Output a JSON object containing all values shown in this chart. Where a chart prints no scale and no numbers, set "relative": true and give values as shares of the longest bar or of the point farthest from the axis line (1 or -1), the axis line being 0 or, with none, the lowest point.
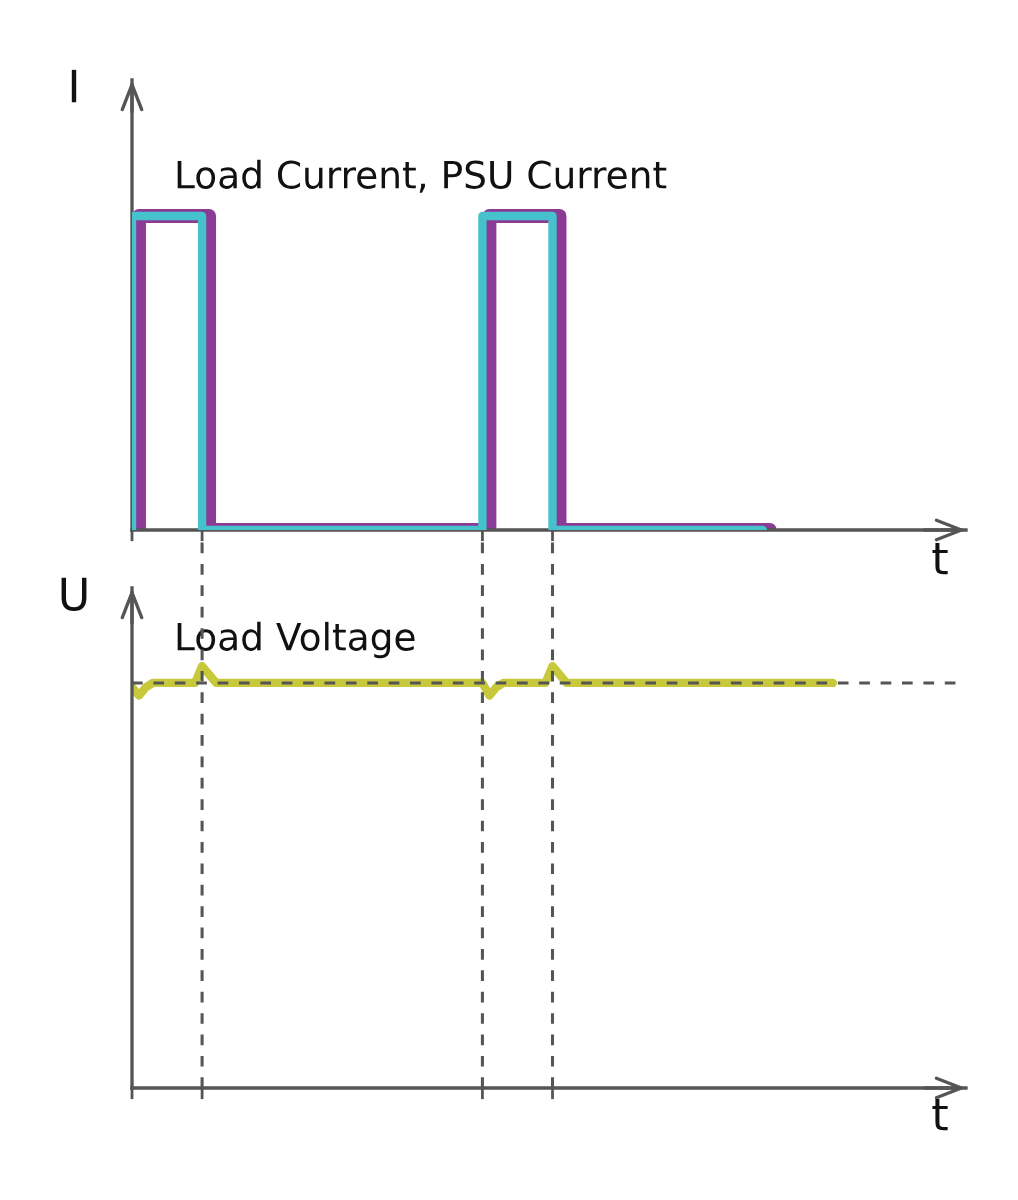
{
  "chart_data": [
    {
      "type": "step",
      "ylabel": "I",
      "xlabel": "t",
      "annotations": [
        "Load Current, PSU Current"
      ],
      "relative": true,
      "categories": [
        null,
        null,
        null,
        null,
        null,
        null,
        null,
        null,
        null,
        null,
        null,
        null,
        null,
        null,
        null,
        null,
        null,
        null,
        null,
        null,
        null,
        null,
        null,
        null,
        null,
        null,
        null,
        null,
        null,
        null,
        null,
        null,
        null,
        null,
        null,
        null,
        null,
        null,
        null,
        null,
        null,
        null,
        null,
        null,
        null,
        null,
        null,
        null,
        null,
        null,
        null,
        null,
        null,
        null,
        null,
        null,
        null,
        null,
        null,
        null,
        null,
        null,
        null,
        null,
        null,
        null,
        null,
        null,
        null,
        null,
        null,
        null,
        null,
        null,
        null,
        null,
        null,
        null,
        null,
        null,
        null,
        null,
        null,
        null,
        null,
        null,
        null,
        null,
        null,
        null,
        null,
        null,
        null,
        null,
        null,
        null,
        null,
        null,
        null,
        null,
        null
      ],
      "series": [
        {
          "color": "#8b3a96",
          "values": [
            0,
            0,
            1,
            1,
            1,
            1,
            1,
            1,
            1,
            1,
            1,
            1,
            0,
            0,
            0,
            0,
            0,
            0,
            0,
            0,
            0,
            0,
            0,
            0,
            0,
            0,
            0,
            0,
            0,
            0,
            0,
            0,
            0,
            0,
            0,
            0,
            0,
            0,
            0,
            0,
            0,
            0,
            0,
            0,
            0,
            0,
            0,
            0,
            0,
            0,
            0,
            0,
            1,
            1,
            1,
            1,
            1,
            1,
            1,
            1,
            1,
            1,
            0,
            0,
            0,
            0,
            0,
            0,
            0,
            0,
            0,
            0,
            0,
            0,
            0,
            0,
            0,
            0,
            0,
            0,
            0,
            0,
            0,
            0,
            0,
            0,
            0,
            0,
            0,
            0,
            0,
            0,
            null,
            null,
            null,
            null,
            null,
            null,
            null,
            null,
            null
          ]
        },
        {
          "color": "#45c2cc",
          "values": [
            0,
            1,
            1,
            1,
            1,
            1,
            1,
            1,
            1,
            1,
            1,
            0,
            0,
            0,
            0,
            0,
            0,
            0,
            0,
            0,
            0,
            0,
            0,
            0,
            0,
            0,
            0,
            0,
            0,
            0,
            0,
            0,
            0,
            0,
            0,
            0,
            0,
            0,
            0,
            0,
            0,
            0,
            0,
            0,
            0,
            0,
            0,
            0,
            0,
            0,
            0,
            1,
            1,
            1,
            1,
            1,
            1,
            1,
            1,
            1,
            1,
            0,
            0,
            0,
            0,
            0,
            0,
            0,
            0,
            0,
            0,
            0,
            0,
            0,
            0,
            0,
            0,
            0,
            0,
            0,
            0,
            0,
            0,
            0,
            0,
            0,
            0,
            0,
            0,
            0,
            0,
            null,
            null,
            null,
            null,
            null,
            null,
            null,
            null,
            null,
            null
          ]
        }
      ]
    },
    {
      "type": "line",
      "ylabel": "U",
      "xlabel": "t",
      "annotations": [
        "Load Voltage"
      ],
      "relative": true,
      "grid": "x",
      "categories": [
        null,
        null,
        null,
        null,
        null,
        null,
        null,
        null,
        null,
        null,
        null,
        null,
        null,
        null,
        null,
        null,
        null,
        null,
        null,
        null,
        null,
        null,
        null,
        null,
        null,
        null,
        null,
        null,
        null,
        null,
        null,
        null,
        null,
        null,
        null,
        null,
        null,
        null,
        null,
        null,
        null,
        null,
        null,
        null,
        null,
        null,
        null,
        null,
        null,
        null,
        null,
        null,
        null,
        null,
        null,
        null,
        null,
        null,
        null,
        null,
        null,
        null,
        null,
        null,
        null,
        null,
        null,
        null,
        null,
        null,
        null,
        null,
        null,
        null,
        null,
        null,
        null,
        null,
        null,
        null,
        null,
        null,
        null,
        null,
        null,
        null,
        null,
        null,
        null,
        null,
        null,
        null,
        null,
        null,
        null,
        null,
        null,
        null,
        null,
        null,
        null
      ],
      "series": [
        {
          "color": "#c8c83c",
          "values": [
            0.95,
            0.93,
            0.95,
            0.96,
            0.96,
            0.96,
            0.96,
            0.96,
            0.96,
            0.96,
            1,
            0.98,
            0.96,
            0.96,
            0.96,
            0.96,
            0.96,
            0.96,
            0.96,
            0.96,
            0.96,
            0.96,
            0.96,
            0.96,
            0.96,
            0.96,
            0.96,
            0.96,
            0.96,
            0.96,
            0.96,
            0.96,
            0.96,
            0.96,
            0.96,
            0.96,
            0.96,
            0.96,
            0.96,
            0.96,
            0.96,
            0.96,
            0.96,
            0.96,
            0.96,
            0.96,
            0.96,
            0.96,
            0.96,
            0.96,
            0.96,
            0.93,
            0.95,
            0.96,
            0.96,
            0.96,
            0.96,
            0.96,
            0.96,
            0.96,
            1,
            0.98,
            0.96,
            0.96,
            0.96,
            0.96,
            0.96,
            0.96,
            0.96,
            0.96,
            0.96,
            0.96,
            0.96,
            0.96,
            0.96,
            0.96,
            0.96,
            0.96,
            0.96,
            0.96,
            0.96,
            0.96,
            0.96,
            0.96,
            0.96,
            0.96,
            0.96,
            0.96,
            0.96,
            0.96,
            0.96,
            0.96,
            0.96,
            0.96,
            0.96,
            0.96,
            0.96,
            0.96,
            0.96,
            0.96,
            0.96
          ]
        }
      ],
      "ref_lines": [
        {
          "axis": "y",
          "value": 0.96,
          "line_style": "dashed",
          "color": "#555555"
        }
      ]
    }
  ]
}
